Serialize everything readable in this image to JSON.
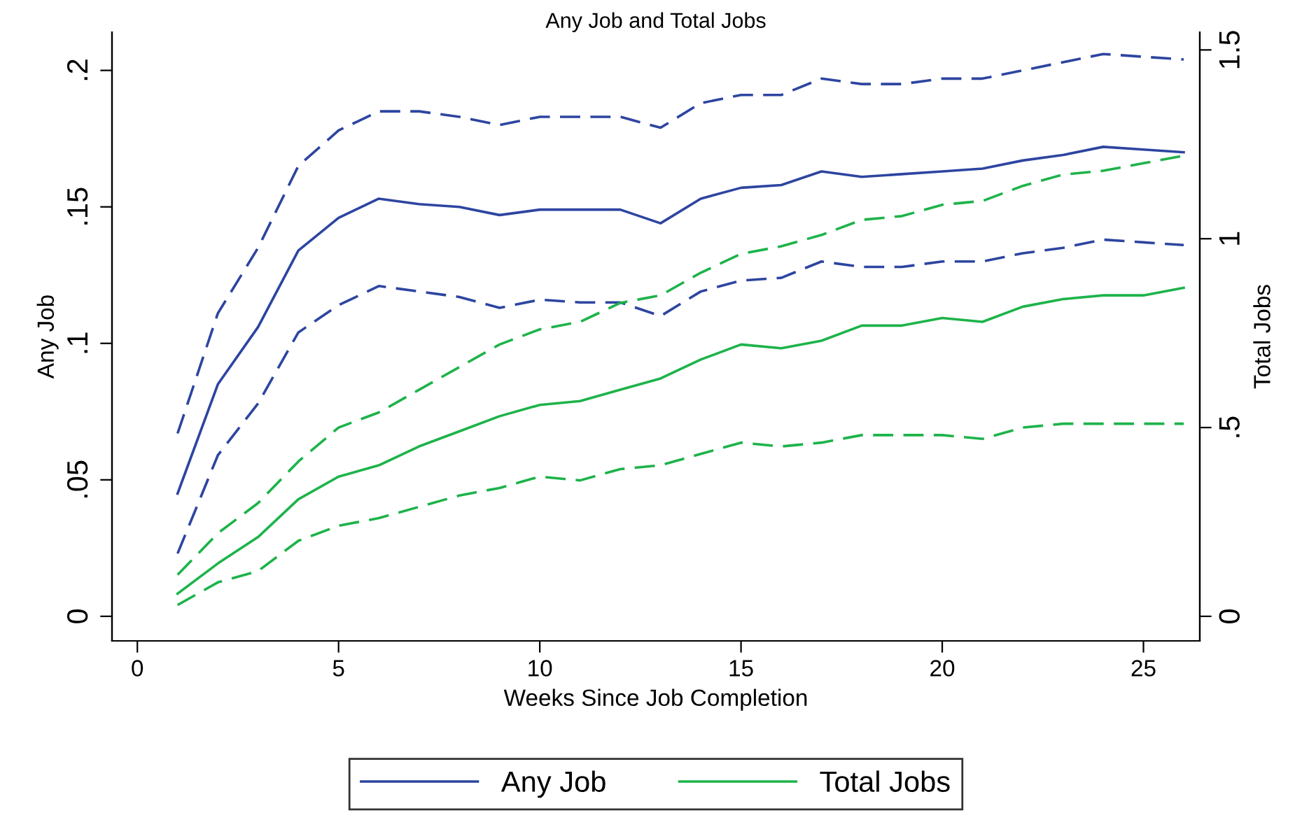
{
  "chart_data": {
    "type": "line",
    "title": "Any Job and Total Jobs",
    "xlabel": "Weeks Since Job Completion",
    "ylabel": "Any Job",
    "y2label": "Total Jobs",
    "x": [
      1,
      2,
      3,
      4,
      5,
      6,
      7,
      8,
      9,
      10,
      11,
      12,
      13,
      14,
      15,
      16,
      17,
      18,
      19,
      20,
      21,
      22,
      23,
      24,
      25,
      26
    ],
    "series": [
      {
        "name": "Any Job",
        "color": "#2d45a0",
        "line_style": "solid",
        "values": [
          0.045,
          0.085,
          0.106,
          0.134,
          0.146,
          0.153,
          0.151,
          0.15,
          0.147,
          0.149,
          0.149,
          0.149,
          0.144,
          0.153,
          0.157,
          0.158,
          0.163,
          0.161,
          0.162,
          0.163,
          0.164,
          0.167,
          0.169,
          0.172,
          0.171,
          0.17
        ]
      },
      {
        "color": "#2d45a0",
        "line_style": "dashed",
        "values": [
          0.067,
          0.111,
          0.135,
          0.165,
          0.178,
          0.185,
          0.185,
          0.183,
          0.18,
          0.183,
          0.183,
          0.183,
          0.179,
          0.188,
          0.191,
          0.191,
          0.197,
          0.195,
          0.195,
          0.197,
          0.197,
          0.2,
          0.203,
          0.206,
          0.205,
          0.204
        ]
      },
      {
        "color": "#2d45a0",
        "line_style": "dashed",
        "values": [
          0.023,
          0.059,
          0.078,
          0.104,
          0.114,
          0.121,
          0.119,
          0.117,
          0.113,
          0.116,
          0.115,
          0.115,
          0.11,
          0.119,
          0.123,
          0.124,
          0.13,
          0.128,
          0.128,
          0.13,
          0.13,
          0.133,
          0.135,
          0.138,
          0.137,
          0.136
        ]
      },
      {
        "name": "Total Jobs",
        "color": "#1db34a",
        "axis": "y2",
        "line_style": "solid",
        "values": [
          0.06,
          0.14,
          0.21,
          0.31,
          0.37,
          0.4,
          0.45,
          0.49,
          0.53,
          0.56,
          0.57,
          0.6,
          0.63,
          0.68,
          0.72,
          0.71,
          0.73,
          0.77,
          0.77,
          0.79,
          0.78,
          0.82,
          0.84,
          0.85,
          0.85,
          0.87
        ]
      },
      {
        "color": "#1db34a",
        "axis": "y2",
        "line_style": "dashed",
        "values": [
          0.11,
          0.22,
          0.3,
          0.41,
          0.5,
          0.54,
          0.6,
          0.66,
          0.72,
          0.76,
          0.78,
          0.83,
          0.85,
          0.91,
          0.96,
          0.98,
          1.01,
          1.05,
          1.06,
          1.09,
          1.1,
          1.14,
          1.17,
          1.18,
          1.2,
          1.22
        ]
      },
      {
        "color": "#1db34a",
        "axis": "y2",
        "line_style": "dashed",
        "values": [
          0.03,
          0.09,
          0.12,
          0.2,
          0.24,
          0.26,
          0.29,
          0.32,
          0.34,
          0.37,
          0.36,
          0.39,
          0.4,
          0.43,
          0.46,
          0.45,
          0.46,
          0.48,
          0.48,
          0.48,
          0.47,
          0.5,
          0.51,
          0.51,
          0.51,
          0.51
        ]
      }
    ],
    "xlim": [
      -0.63,
      26.4
    ],
    "xticks": [
      0,
      5,
      10,
      15,
      20,
      25
    ],
    "ylim": [
      -0.009,
      0.214
    ],
    "yticks": [
      0,
      {
        "value": 0.05,
        "label": ".05"
      },
      {
        "value": 0.1,
        "label": ".1"
      },
      {
        "value": 0.15,
        "label": ".15"
      },
      {
        "value": 0.2,
        "label": ".2"
      }
    ],
    "y2lim": [
      -0.065,
      1.547
    ],
    "y2ticks": [
      0,
      {
        "value": 0.5,
        "label": ".5"
      },
      1,
      1.5
    ],
    "grid": false,
    "legend": "bottom",
    "marker": "none"
  }
}
